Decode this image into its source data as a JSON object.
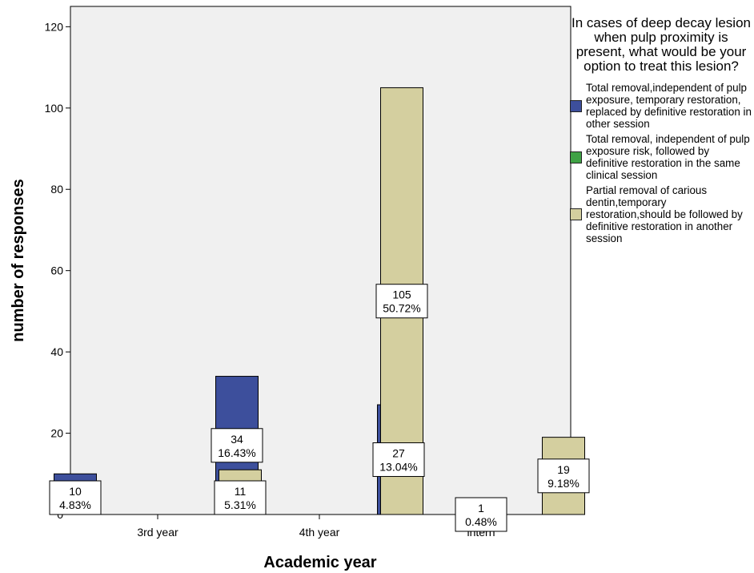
{
  "chart_data": {
    "type": "bar",
    "xlabel": "Academic year",
    "ylabel": "number of responses",
    "ylim": [
      0,
      125
    ],
    "yticks": [
      0,
      20,
      40,
      60,
      80,
      100,
      120
    ],
    "grid": false,
    "legend_placement": "right",
    "categories": [
      "3rd year",
      "4th year",
      "intern"
    ],
    "legend_title": "In cases of deep decay lesion when pulp proximity is present, what would be your option to treat this lesion?",
    "series": [
      {
        "name": "Total removal,independent of pulp exposure, temporary restoration, replaced by definitive restoration in other session",
        "color": "#3d4f9c",
        "values": [
          10,
          34,
          27
        ],
        "labels": [
          [
            "10",
            "4.83%"
          ],
          [
            "34",
            "16.43%"
          ],
          [
            "27",
            "13.04%"
          ]
        ]
      },
      {
        "name": "Total removal, independent of pulp exposure risk, followed by definitive restoration in the same clinical session",
        "color": "#3fa245",
        "values": [
          0,
          0,
          1
        ],
        "labels": [
          null,
          null,
          [
            "1",
            "0.48%"
          ]
        ]
      },
      {
        "name": "Partial removal of carious dentin,temporary restoration,should be followed by definitive restoration in another session",
        "color": "#d4cf9f",
        "values": [
          11,
          105,
          19
        ],
        "labels": [
          [
            "11",
            "5.31%"
          ],
          [
            "105",
            "50.72%"
          ],
          [
            "19",
            "9.18%"
          ]
        ]
      }
    ]
  }
}
